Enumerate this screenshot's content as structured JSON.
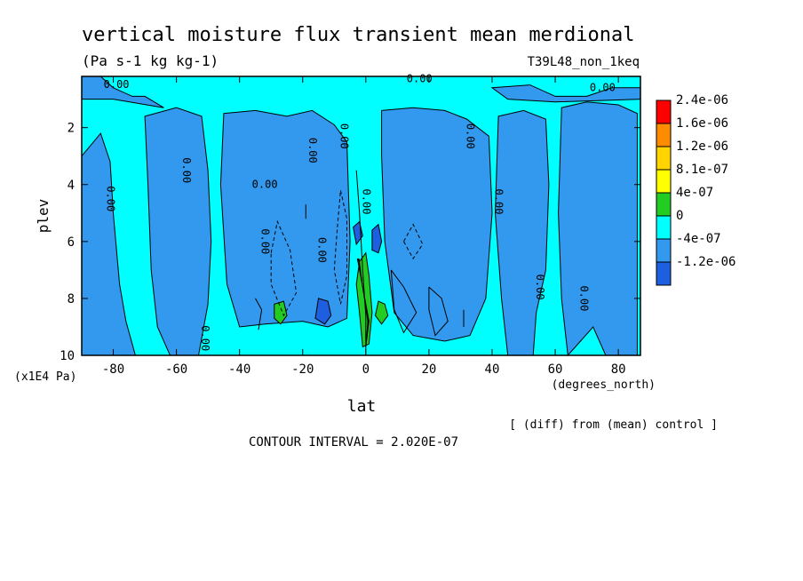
{
  "chart_data": {
    "type": "heatmap",
    "title": "vertical moisture flux transient mean merdional",
    "units": "(Pa s-1 kg kg-1)",
    "run_label": "T39L48_non_1keq",
    "xlabel": "lat",
    "xunits": "(degrees_north)",
    "ylabel": "plev",
    "yunits": "(x1E4 Pa)",
    "xlim": [
      -90,
      87
    ],
    "ylim": [
      10,
      0.2
    ],
    "xticks": [
      -80,
      -60,
      -40,
      -20,
      0,
      20,
      40,
      60,
      80
    ],
    "yticks": [
      2,
      4,
      6,
      8,
      10
    ],
    "contour_interval": "CONTOUR INTERVAL = 2.020E-07",
    "note": "[ (diff) from (mean) control ]",
    "colorbar": {
      "labels": [
        "2.4e-06",
        "1.6e-06",
        "1.2e-06",
        "8.1e-07",
        "4e-07",
        "0",
        "-4e-07",
        "-1.2e-06"
      ],
      "colors": [
        "#ff0000",
        "#ff8c00",
        "#ffd400",
        "#ffff00",
        "#22cc22",
        "#00ffff",
        "#3399ee",
        "#1e5fe0"
      ]
    },
    "contour_labels": [
      "0.00"
    ],
    "regions": {
      "positive_color": "#00ffff",
      "negative_color": "#3399ee",
      "strong_negative_color": "#1e5fe0",
      "strong_positive_color": "#22cc22"
    },
    "features": [
      {
        "kind": "positive_band",
        "lat": [
          -90,
          87
        ],
        "plev": [
          0.2,
          1.4
        ]
      },
      {
        "kind": "negative_zone",
        "lat": [
          -90,
          -72
        ],
        "plev": [
          3,
          10
        ]
      },
      {
        "kind": "negative_zone",
        "lat": [
          -70,
          -48
        ],
        "plev": [
          1.5,
          10
        ]
      },
      {
        "kind": "negative_zone",
        "lat": [
          -45,
          -5
        ],
        "plev": [
          1.5,
          9
        ]
      },
      {
        "kind": "negative_zone",
        "lat": [
          5,
          40
        ],
        "plev": [
          1.5,
          9.5
        ]
      },
      {
        "kind": "negative_zone",
        "lat": [
          42,
          58
        ],
        "plev": [
          1.5,
          10
        ]
      },
      {
        "kind": "negative_zone",
        "lat": [
          62,
          86
        ],
        "plev": [
          1.2,
          10
        ]
      },
      {
        "kind": "strong_positive_max",
        "lat": -1,
        "plev": 8.3
      },
      {
        "kind": "strong_positive_max",
        "lat": 5,
        "plev": 8.4
      },
      {
        "kind": "strong_positive_max",
        "lat": -27,
        "plev": 8.5
      },
      {
        "kind": "strong_negative_min",
        "lat": -13,
        "plev": 8.4
      },
      {
        "kind": "strong_negative_min",
        "lat": 3,
        "plev": 5.9
      }
    ]
  }
}
